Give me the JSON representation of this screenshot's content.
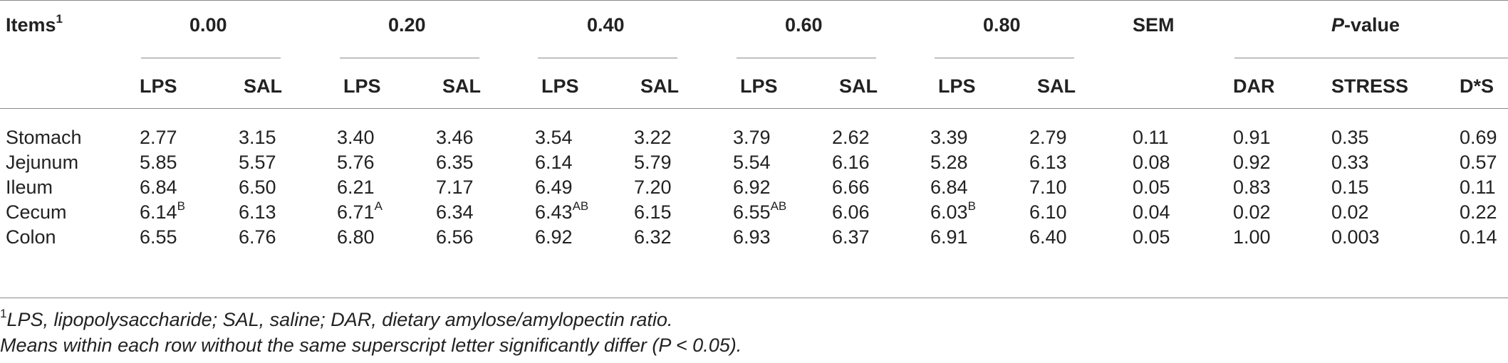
{
  "header": {
    "items_label": "Items",
    "items_sup": "1",
    "levels": [
      "0.00",
      "0.20",
      "0.40",
      "0.60",
      "0.80"
    ],
    "sem": "SEM",
    "pvalue_italic": "P",
    "pvalue_rest": "-value",
    "lps": "LPS",
    "sal": "SAL",
    "dar": "DAR",
    "stress": "STRESS",
    "ds": "D*S"
  },
  "rows": [
    {
      "name": "Stomach",
      "vals": [
        "2.77",
        "3.15",
        "3.40",
        "3.46",
        "3.54",
        "3.22",
        "3.79",
        "2.62",
        "3.39",
        "2.79"
      ],
      "sups": [
        "",
        "",
        "",
        "",
        "",
        "",
        "",
        "",
        "",
        ""
      ],
      "sem": "0.11",
      "dar": "0.91",
      "stress": "0.35",
      "ds": "0.69"
    },
    {
      "name": "Jejunum",
      "vals": [
        "5.85",
        "5.57",
        "5.76",
        "6.35",
        "6.14",
        "5.79",
        "5.54",
        "6.16",
        "5.28",
        "6.13"
      ],
      "sups": [
        "",
        "",
        "",
        "",
        "",
        "",
        "",
        "",
        "",
        ""
      ],
      "sem": "0.08",
      "dar": "0.92",
      "stress": "0.33",
      "ds": "0.57"
    },
    {
      "name": "Ileum",
      "vals": [
        "6.84",
        "6.50",
        "6.21",
        "7.17",
        "6.49",
        "7.20",
        "6.92",
        "6.66",
        "6.84",
        "7.10"
      ],
      "sups": [
        "",
        "",
        "",
        "",
        "",
        "",
        "",
        "",
        "",
        ""
      ],
      "sem": "0.05",
      "dar": "0.83",
      "stress": "0.15",
      "ds": "0.11"
    },
    {
      "name": "Cecum",
      "vals": [
        "6.14",
        "6.13",
        "6.71",
        "6.34",
        "6.43",
        "6.15",
        "6.55",
        "6.06",
        "6.03",
        "6.10"
      ],
      "sups": [
        "B",
        "",
        "A",
        "",
        "AB",
        "",
        "AB",
        "",
        "B",
        ""
      ],
      "sem": "0.04",
      "dar": "0.02",
      "stress": "0.02",
      "ds": "0.22"
    },
    {
      "name": "Colon",
      "vals": [
        "6.55",
        "6.76",
        "6.80",
        "6.56",
        "6.92",
        "6.32",
        "6.93",
        "6.37",
        "6.91",
        "6.40"
      ],
      "sups": [
        "",
        "",
        "",
        "",
        "",
        "",
        "",
        "",
        "",
        ""
      ],
      "sem": "0.05",
      "dar": "1.00",
      "stress": "0.003",
      "ds": "0.14"
    }
  ],
  "footnotes": {
    "note1_sup": "1",
    "note1": "LPS, lipopolysaccharide; SAL, saline; DAR, dietary amylose/amylopectin ratio.",
    "note2": "Means within each row without the same superscript letter significantly differ (P < 0.05)."
  }
}
